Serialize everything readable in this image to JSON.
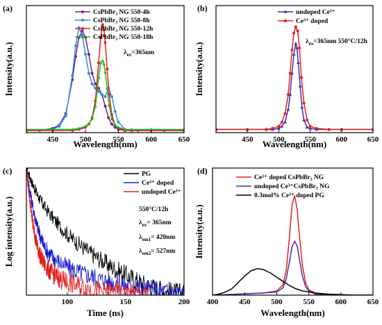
{
  "chart_data": [
    {
      "panel": "(a)",
      "type": "line",
      "xlabel": "Wavelength(nm)",
      "ylabel": "Intensity(a.u.)",
      "xlim": [
        410,
        650
      ],
      "ylim": [
        0,
        1.2
      ],
      "xticks": [
        "450",
        "500",
        "550",
        "600",
        "650"
      ],
      "legend_position": "top-right",
      "annotations": [
        {
          "main": "λ",
          "sub": "ex",
          "rest": "=365nm"
        }
      ],
      "series": [
        {
          "name": "CsPbBr₃ NG 550-4h",
          "color": "#7b1a8a",
          "marker": "circle",
          "x": [
            410,
            430,
            450,
            460,
            470,
            480,
            485,
            490,
            495,
            500,
            505,
            510,
            515,
            520,
            525,
            530,
            535,
            540,
            545,
            550,
            560,
            570,
            580,
            600,
            620,
            650
          ],
          "y": [
            0.02,
            0.02,
            0.04,
            0.07,
            0.18,
            0.5,
            0.72,
            0.9,
            0.96,
            0.9,
            0.74,
            0.56,
            0.46,
            0.42,
            0.36,
            0.25,
            0.14,
            0.08,
            0.05,
            0.03,
            0.02,
            0.02,
            0.02,
            0.02,
            0.02,
            0.02
          ]
        },
        {
          "name": "CsPbBr₃ NG 550-8h",
          "color": "#2b90d9",
          "marker": "circle",
          "x": [
            410,
            430,
            450,
            460,
            470,
            480,
            485,
            490,
            495,
            500,
            505,
            510,
            515,
            520,
            525,
            530,
            535,
            540,
            545,
            550,
            560,
            570,
            580,
            600,
            620,
            650
          ],
          "y": [
            0.02,
            0.02,
            0.03,
            0.06,
            0.16,
            0.54,
            0.82,
            0.99,
            0.92,
            0.74,
            0.56,
            0.46,
            0.42,
            0.39,
            0.36,
            0.34,
            0.42,
            0.34,
            0.2,
            0.1,
            0.03,
            0.02,
            0.02,
            0.02,
            0.02,
            0.02
          ]
        },
        {
          "name": "CsPbBr₃ NG 550-12h",
          "color": "#e0201e",
          "marker": "circle",
          "x": [
            410,
            450,
            480,
            490,
            500,
            505,
            510,
            515,
            520,
            523,
            526,
            528,
            530,
            533,
            536,
            540,
            545,
            550,
            560,
            570,
            600,
            650
          ],
          "y": [
            0.02,
            0.02,
            0.02,
            0.03,
            0.05,
            0.08,
            0.14,
            0.3,
            0.66,
            0.9,
            1.02,
            0.97,
            0.85,
            0.6,
            0.36,
            0.17,
            0.07,
            0.04,
            0.02,
            0.02,
            0.02,
            0.02
          ]
        },
        {
          "name": "CsPbBr₃ NG 550-18h",
          "color": "#22b022",
          "marker": "triangle",
          "x": [
            410,
            450,
            480,
            490,
            500,
            505,
            510,
            515,
            520,
            523,
            526,
            528,
            530,
            533,
            536,
            540,
            545,
            550,
            560,
            570,
            600,
            650
          ],
          "y": [
            0.03,
            0.03,
            0.03,
            0.04,
            0.06,
            0.08,
            0.13,
            0.25,
            0.52,
            0.66,
            0.68,
            0.65,
            0.57,
            0.42,
            0.26,
            0.13,
            0.07,
            0.05,
            0.03,
            0.03,
            0.03,
            0.03
          ]
        }
      ]
    },
    {
      "panel": "(b)",
      "type": "line",
      "xlabel": "Wavelength(nm)",
      "ylabel": "Intensity(a.u.)",
      "xlim": [
        400,
        650
      ],
      "ylim": [
        0,
        1.2
      ],
      "xticks": [
        "450",
        "500",
        "550",
        "600",
        "650"
      ],
      "legend_position": "top-right",
      "annotations": [
        {
          "main": "λ",
          "sub": "ex",
          "rest": "=365nm   550°C/12h"
        }
      ],
      "series": [
        {
          "name": "undoped Ce³⁺",
          "color": "#3a2bb0",
          "marker": "triangle",
          "x": [
            400,
            450,
            480,
            490,
            500,
            505,
            510,
            515,
            518,
            521,
            524,
            527,
            529,
            531,
            534,
            537,
            540,
            545,
            550,
            560,
            580,
            600,
            650
          ],
          "y": [
            0.03,
            0.03,
            0.03,
            0.03,
            0.04,
            0.06,
            0.1,
            0.22,
            0.36,
            0.56,
            0.74,
            0.84,
            0.8,
            0.66,
            0.44,
            0.24,
            0.12,
            0.05,
            0.04,
            0.03,
            0.03,
            0.03,
            0.03
          ]
        },
        {
          "name": "Ce³⁺ doped",
          "color": "#e0201e",
          "marker": "circle",
          "x": [
            400,
            450,
            480,
            490,
            500,
            505,
            510,
            515,
            518,
            521,
            524,
            527,
            530,
            533,
            536,
            540,
            545,
            550,
            560,
            580,
            600,
            650
          ],
          "y": [
            0.03,
            0.03,
            0.03,
            0.04,
            0.06,
            0.1,
            0.18,
            0.36,
            0.56,
            0.78,
            0.94,
            1.0,
            0.96,
            0.8,
            0.52,
            0.28,
            0.12,
            0.06,
            0.04,
            0.03,
            0.03,
            0.03
          ]
        }
      ]
    },
    {
      "panel": "(c)",
      "type": "line",
      "xlabel": "Time (ns)",
      "ylabel": "Log intensity(a.u.)",
      "xlim": [
        65,
        200
      ],
      "ylim": [
        0,
        1
      ],
      "xticks": [
        "100",
        "150",
        "200"
      ],
      "legend_position": "top-right",
      "annotations": [
        {
          "main": "550°C/12h",
          "sub": "",
          "rest": ""
        },
        {
          "main": "λ",
          "sub": "ex",
          "rest": "= 365nm"
        },
        {
          "main": "λ",
          "sub": "em1",
          "rest": "= 420nm"
        },
        {
          "main": "λ",
          "sub": "em2",
          "rest": "= 527nm"
        }
      ],
      "series": [
        {
          "name": "PG",
          "color": "#000000",
          "x": [
            65,
            70,
            75,
            80,
            90,
            100,
            110,
            120,
            130,
            140,
            150,
            160,
            170,
            180,
            190,
            200
          ],
          "y": [
            1.0,
            0.88,
            0.78,
            0.7,
            0.58,
            0.48,
            0.4,
            0.33,
            0.27,
            0.21,
            0.16,
            0.11,
            0.07,
            0.04,
            0.02,
            0.01
          ]
        },
        {
          "name": "Ce³⁺ doped",
          "color": "#1a1acc",
          "x": [
            65,
            68,
            71,
            74,
            77,
            80,
            85,
            90,
            100,
            110,
            120,
            130,
            140,
            150,
            160,
            170,
            180,
            190,
            200
          ],
          "y": [
            1.0,
            0.82,
            0.67,
            0.55,
            0.46,
            0.39,
            0.32,
            0.28,
            0.22,
            0.18,
            0.15,
            0.12,
            0.1,
            0.08,
            0.06,
            0.04,
            0.03,
            0.02,
            0.01
          ]
        },
        {
          "name": "undoped Ce³⁺",
          "color": "#e0201e",
          "x": [
            65,
            67,
            69,
            71,
            73,
            75,
            78,
            82,
            86,
            90,
            95,
            100,
            110,
            120,
            130,
            140,
            150,
            160,
            170
          ],
          "y": [
            1.0,
            0.82,
            0.66,
            0.54,
            0.44,
            0.36,
            0.28,
            0.22,
            0.18,
            0.15,
            0.12,
            0.1,
            0.07,
            0.05,
            0.03,
            0.02,
            0.01,
            0.01,
            0.0
          ]
        }
      ]
    },
    {
      "panel": "(d)",
      "type": "line",
      "xlabel": "Wavelength(nm)",
      "ylabel": "Intensity(a.u.)",
      "xlim": [
        400,
        650
      ],
      "ylim": [
        0,
        1.2
      ],
      "xticks": [
        "400",
        "450",
        "500",
        "550",
        "600",
        "650"
      ],
      "legend_position": "top-left",
      "series": [
        {
          "name": "Ce³⁺ doped CsPbBr₃ NG",
          "color": "#e0201e",
          "x": [
            400,
            420,
            440,
            460,
            480,
            500,
            510,
            515,
            520,
            524,
            528,
            532,
            536,
            540,
            545,
            550,
            560,
            580,
            600,
            650
          ],
          "y": [
            0.0,
            0.005,
            0.01,
            0.015,
            0.02,
            0.04,
            0.1,
            0.24,
            0.56,
            0.86,
            0.94,
            0.8,
            0.52,
            0.28,
            0.12,
            0.05,
            0.02,
            0.0,
            0.0,
            0.0
          ]
        },
        {
          "name": "undoped Ce³⁺CsPbBr₃ NG",
          "color": "#4b2aa0",
          "x": [
            400,
            420,
            440,
            460,
            480,
            500,
            510,
            515,
            520,
            524,
            528,
            532,
            536,
            540,
            545,
            550,
            560,
            580,
            600,
            650
          ],
          "y": [
            0.0,
            0.005,
            0.01,
            0.015,
            0.02,
            0.03,
            0.07,
            0.16,
            0.32,
            0.46,
            0.51,
            0.46,
            0.32,
            0.18,
            0.08,
            0.04,
            0.01,
            0.0,
            0.0,
            0.0
          ]
        },
        {
          "name": "0.3mol% Ce³⁺ doped PG",
          "color": "#000000",
          "x": [
            400,
            410,
            420,
            430,
            440,
            450,
            460,
            470,
            480,
            490,
            500,
            510,
            520,
            530,
            540,
            550,
            560,
            580,
            600,
            620,
            650
          ],
          "y": [
            0.0,
            0.01,
            0.03,
            0.06,
            0.12,
            0.18,
            0.23,
            0.25,
            0.24,
            0.21,
            0.17,
            0.13,
            0.09,
            0.06,
            0.04,
            0.03,
            0.02,
            0.01,
            0.005,
            0.0,
            0.0
          ]
        }
      ]
    }
  ]
}
